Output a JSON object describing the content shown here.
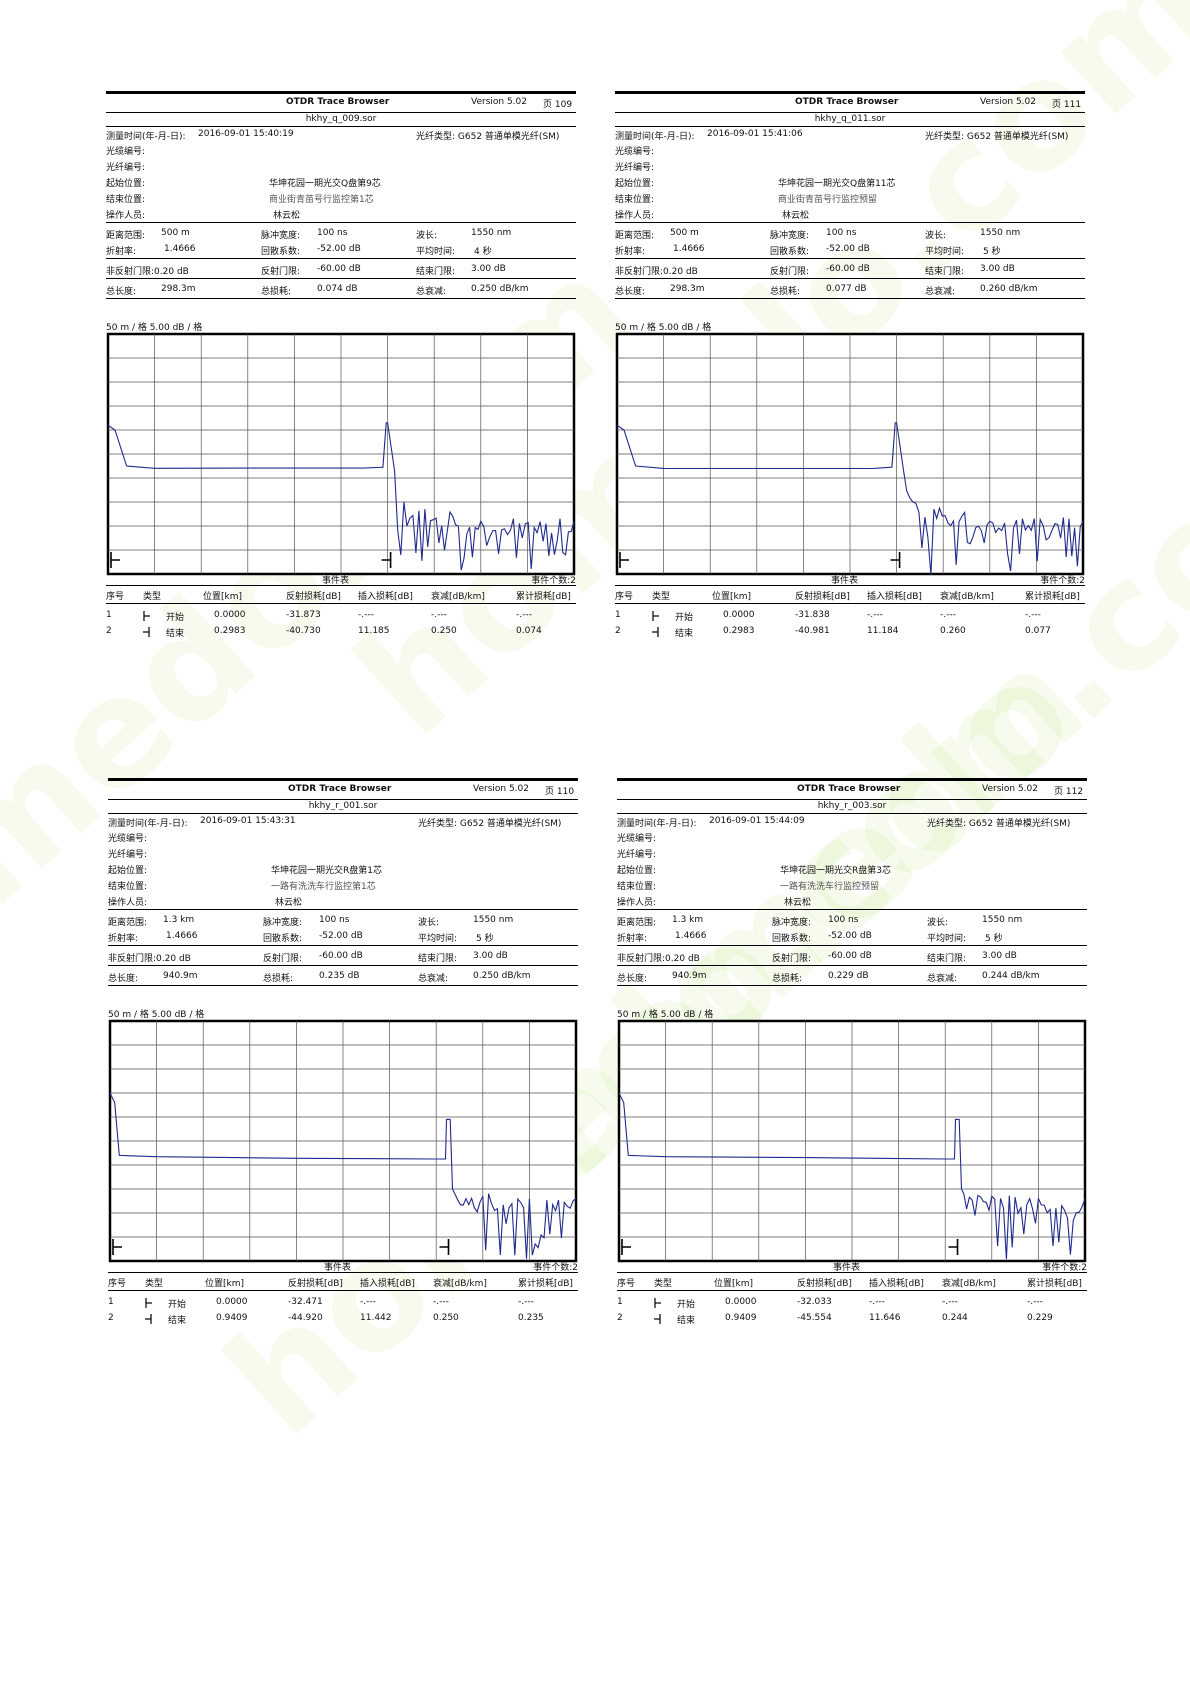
{
  "watermark": {
    "text": "homedo.com",
    "color": "#9ecf3c"
  },
  "labels": {
    "app_title": "OTDR Trace Browser",
    "version": "Version 5.02",
    "page_prefix": "页",
    "measure_time": "测量时间(年-月-日):",
    "fiber_type_label": "光纤类型:",
    "cable_no": "光缆编号:",
    "fiber_no": "光纤编号:",
    "start_loc": "起始位置:",
    "end_loc": "结束位置:",
    "operator": "操作人员:",
    "range": "距离范围:",
    "pulse": "脉冲宽度:",
    "wavelength": "波长:",
    "ior": "折射率:",
    "backscatter": "回散系数:",
    "avg_time": "平均时间:",
    "nonrefl_threshold": "非反射门限:",
    "refl_threshold": "反射门限:",
    "end_threshold": "结束门限:",
    "total_length": "总长度:",
    "total_loss": "总损耗:",
    "total_atten": "总衰减:",
    "event_table": "事件表",
    "event_count": "事件个数:",
    "col_no": "序号",
    "col_type": "类型",
    "col_pos": "位置[km]",
    "col_refl": "反射损耗[dB]",
    "col_ins": "插入损耗[dB]",
    "col_att": "衰减[dB/km]",
    "col_cum": "累计损耗[dB]"
  },
  "reports": [
    {
      "page": "109",
      "file": "hkhy_q_009.sor",
      "datetime": "2016-09-01  15:40:19",
      "fiber_type": "G652 普通单模光纤(SM)",
      "cable_no": "",
      "fiber_no": "",
      "start_location": "华坤花园一期光交Q盘第9芯",
      "end_location": "商业街青苗号行监控第1芯",
      "operator": "林云松",
      "range": "500 m",
      "pulse": "100 ns",
      "wavelength": "1550 nm",
      "ior": "1.4666",
      "backscatter": "-52.00 dB",
      "avg_time": "4 秒",
      "nonrefl": "0.20 dB",
      "refl": "-60.00 dB",
      "endthr": "3.00 dB",
      "total_length": "298.3m",
      "total_loss": "0.074 dB",
      "total_atten": "0.250 dB/km",
      "scale": "50 m / 格    5.00 dB / 格",
      "event_count": "2",
      "events": [
        {
          "no": "1",
          "type": "开始",
          "pos": "0.0000",
          "refl": "-31.873",
          "ins": "-.---",
          "att": "-.---",
          "cum": "-.---"
        },
        {
          "no": "2",
          "type": "结束",
          "pos": "0.2983",
          "refl": "-40.730",
          "ins": "11.185",
          "att": "0.250",
          "cum": "0.074"
        }
      ]
    },
    {
      "page": "111",
      "file": "hkhy_q_011.sor",
      "datetime": "2016-09-01  15:41:06",
      "fiber_type": "G652 普通单模光纤(SM)",
      "cable_no": "",
      "fiber_no": "",
      "start_location": "华坤花园一期光交Q盘第11芯",
      "end_location": "商业街青苗号行监控预留",
      "operator": "林云松",
      "range": "500 m",
      "pulse": "100 ns",
      "wavelength": "1550 nm",
      "ior": "1.4666",
      "backscatter": "-52.00 dB",
      "avg_time": "5 秒",
      "nonrefl": "0.20 dB",
      "refl": "-60.00 dB",
      "endthr": "3.00 dB",
      "total_length": "298.3m",
      "total_loss": "0.077 dB",
      "total_atten": "0.260 dB/km",
      "scale": "50 m / 格    5.00 dB / 格",
      "event_count": "2",
      "events": [
        {
          "no": "1",
          "type": "开始",
          "pos": "0.0000",
          "refl": "-31.838",
          "ins": "-.---",
          "att": "-.---",
          "cum": "-.---"
        },
        {
          "no": "2",
          "type": "结束",
          "pos": "0.2983",
          "refl": "-40.981",
          "ins": "11.184",
          "att": "0.260",
          "cum": "0.077"
        }
      ]
    },
    {
      "page": "110",
      "file": "hkhy_r_001.sor",
      "datetime": "2016-09-01  15:43:31",
      "fiber_type": "G652 普通单模光纤(SM)",
      "cable_no": "",
      "fiber_no": "",
      "start_location": "华坤花园一期光交R盘第1芯",
      "end_location": "一路有洗洗车行监控第1芯",
      "operator": "林云松",
      "range": "1.3 km",
      "pulse": "100 ns",
      "wavelength": "1550 nm",
      "ior": "1.4666",
      "backscatter": "-52.00 dB",
      "avg_time": "5 秒",
      "nonrefl": "0.20 dB",
      "refl": "-60.00 dB",
      "endthr": "3.00 dB",
      "total_length": "940.9m",
      "total_loss": "0.235 dB",
      "total_atten": "0.250 dB/km",
      "scale": "50 m / 格    5.00 dB / 格",
      "event_count": "2",
      "events": [
        {
          "no": "1",
          "type": "开始",
          "pos": "0.0000",
          "refl": "-32.471",
          "ins": "-.---",
          "att": "-.---",
          "cum": "-.---"
        },
        {
          "no": "2",
          "type": "结束",
          "pos": "0.9409",
          "refl": "-44.920",
          "ins": "11.442",
          "att": "0.250",
          "cum": "0.235"
        }
      ]
    },
    {
      "page": "112",
      "file": "hkhy_r_003.sor",
      "datetime": "2016-09-01  15:44:09",
      "fiber_type": "G652 普通单模光纤(SM)",
      "cable_no": "",
      "fiber_no": "",
      "start_location": "华坤花园一期光交R盘第3芯",
      "end_location": "一路有洗洗车行监控预留",
      "operator": "林云松",
      "range": "1.3 km",
      "pulse": "100 ns",
      "wavelength": "1550 nm",
      "ior": "1.4666",
      "backscatter": "-52.00 dB",
      "avg_time": "5 秒",
      "nonrefl": "0.20 dB",
      "refl": "-60.00 dB",
      "endthr": "3.00 dB",
      "total_length": "940.9m",
      "total_loss": "0.229 dB",
      "total_atten": "0.244 dB/km",
      "scale": "50 m / 格    5.00 dB / 格",
      "event_count": "2",
      "events": [
        {
          "no": "1",
          "type": "开始",
          "pos": "0.0000",
          "refl": "-32.033",
          "ins": "-.---",
          "att": "-.---",
          "cum": "-.---"
        },
        {
          "no": "2",
          "type": "结束",
          "pos": "0.9409",
          "refl": "-45.554",
          "ins": "11.646",
          "att": "0.244",
          "cum": "0.229"
        }
      ]
    }
  ],
  "chart_data": [
    {
      "type": "line",
      "x_major_divisions": 10,
      "y_major_divisions": 10,
      "grid": true,
      "series": [
        {
          "color": "#1f2a8c",
          "x": [
            0,
            0.015,
            0.04,
            0.1,
            0.3,
            0.55,
            0.59,
            0.597,
            0.6,
            0.615,
            0.635,
            0.68,
            0.74,
            0.8,
            0.87,
            0.94,
            0.97,
            1.0
          ],
          "y": [
            6.2,
            6.0,
            4.5,
            4.4,
            4.4,
            4.4,
            4.45,
            6.3,
            6.3,
            4.3,
            3.0,
            2.7,
            2.4,
            2.2,
            2.3,
            2.1,
            2.3,
            2.2
          ]
        }
      ],
      "noise_from_x": 0.615
    },
    {
      "type": "line",
      "x_major_divisions": 10,
      "y_major_divisions": 10,
      "grid": true,
      "series": [
        {
          "color": "#1f2a8c",
          "x": [
            0,
            0.015,
            0.04,
            0.1,
            0.3,
            0.55,
            0.59,
            0.597,
            0.6,
            0.615,
            0.635,
            0.68,
            0.74,
            0.8,
            0.87,
            0.94,
            0.97,
            1.0
          ],
          "y": [
            6.2,
            6.0,
            4.5,
            4.4,
            4.4,
            4.4,
            4.45,
            6.3,
            6.3,
            4.3,
            3.0,
            2.7,
            2.4,
            2.2,
            2.3,
            2.1,
            2.3,
            2.2
          ]
        }
      ],
      "noise_from_x": 0.615
    },
    {
      "type": "line",
      "x_major_divisions": 10,
      "y_major_divisions": 10,
      "grid": true,
      "series": [
        {
          "color": "#1f2a8c",
          "x": [
            0,
            0.01,
            0.02,
            0.1,
            0.4,
            0.7,
            0.72,
            0.722,
            0.73,
            0.735,
            0.74,
            0.8,
            0.9,
            1.0
          ],
          "y": [
            7.0,
            6.6,
            4.4,
            4.35,
            4.3,
            4.25,
            4.25,
            5.9,
            5.9,
            3.0,
            2.8,
            2.7,
            2.6,
            2.6
          ]
        }
      ],
      "noise_from_x": 0.735
    },
    {
      "type": "line",
      "x_major_divisions": 10,
      "y_major_divisions": 10,
      "grid": true,
      "series": [
        {
          "color": "#1f2a8c",
          "x": [
            0,
            0.01,
            0.02,
            0.1,
            0.4,
            0.7,
            0.72,
            0.722,
            0.73,
            0.735,
            0.74,
            0.8,
            0.9,
            1.0
          ],
          "y": [
            7.0,
            6.6,
            4.4,
            4.35,
            4.3,
            4.25,
            4.25,
            5.9,
            5.9,
            3.0,
            2.8,
            2.7,
            2.6,
            2.6
          ]
        }
      ],
      "noise_from_x": 0.735
    }
  ]
}
